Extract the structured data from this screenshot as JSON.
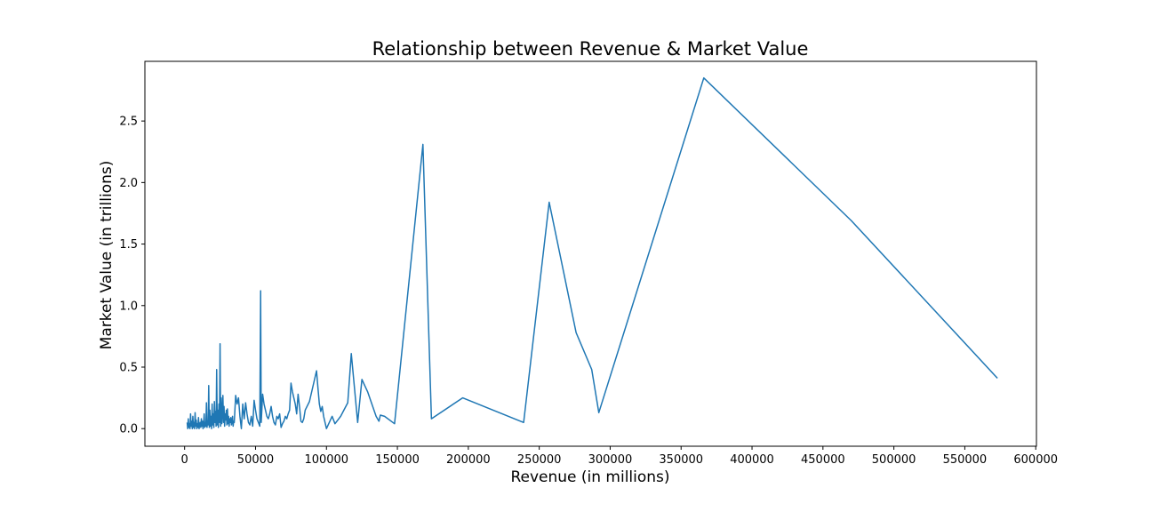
{
  "chart_data": {
    "type": "line",
    "title": "Relationship between Revenue & Market Value",
    "xlabel": "Revenue (in millions)",
    "ylabel": "Market Value (in trillions)",
    "xlim": [
      -28000,
      600500
    ],
    "ylim": [
      -0.143,
      2.985
    ],
    "x_ticks": [
      0,
      50000,
      100000,
      150000,
      200000,
      250000,
      300000,
      350000,
      400000,
      450000,
      500000,
      550000,
      600000
    ],
    "y_ticks": [
      0.0,
      0.5,
      1.0,
      1.5,
      2.0,
      2.5
    ],
    "x_tick_labels": [
      "0",
      "50000",
      "100000",
      "150000",
      "200000",
      "250000",
      "300000",
      "350000",
      "400000",
      "450000",
      "500000",
      "550000",
      "600000"
    ],
    "y_tick_labels": [
      "0.0",
      "0.5",
      "1.0",
      "1.5",
      "2.0",
      "2.5"
    ],
    "grid": false,
    "series": [
      {
        "color": "#1f77b4",
        "x": [
          1800,
          2200,
          2600,
          3000,
          3400,
          3800,
          4200,
          4600,
          5000,
          5400,
          5800,
          6200,
          6600,
          7000,
          7400,
          7800,
          8200,
          8600,
          9000,
          9400,
          9800,
          10200,
          10600,
          11000,
          11400,
          11800,
          12200,
          12600,
          13000,
          13400,
          13800,
          14200,
          14600,
          15000,
          15400,
          15800,
          16200,
          16600,
          17000,
          17400,
          17800,
          18200,
          18600,
          19000,
          19400,
          19800,
          20200,
          20600,
          21000,
          21400,
          21800,
          22200,
          22600,
          23000,
          23400,
          23800,
          24200,
          24600,
          25000,
          25400,
          25800,
          26200,
          26600,
          27000,
          27400,
          27800,
          28200,
          28600,
          29000,
          29400,
          29800,
          30200,
          30600,
          31000,
          31400,
          31800,
          32200,
          32600,
          33000,
          33400,
          33800,
          34200,
          34600,
          35000,
          36000,
          37000,
          38000,
          39000,
          40000,
          41000,
          42000,
          43000,
          44000,
          45000,
          46000,
          47000,
          48000,
          49000,
          50000,
          51000,
          52000,
          53000,
          53600,
          54000,
          55000,
          56000,
          57000,
          58000,
          59000,
          60000,
          61000,
          62000,
          63000,
          64000,
          65000,
          66000,
          67000,
          68000,
          69000,
          70000,
          71000,
          72000,
          73000,
          74000,
          75000,
          76000,
          77000,
          78000,
          79000,
          80000,
          81000,
          82000,
          83000,
          84000,
          85000,
          88000,
          93000,
          94000,
          95000,
          96000,
          97000,
          98000,
          100000,
          104000,
          106000,
          110000,
          115000,
          117500,
          122000,
          125000,
          127000,
          129000,
          132000,
          135000,
          137000,
          138000,
          141000,
          148000,
          168000,
          174000,
          196000,
          239000,
          257000,
          276000,
          287000,
          292000,
          366000,
          470000,
          573000
        ],
        "y": [
          0.05,
          0.0,
          0.08,
          0.01,
          0.04,
          0.0,
          0.12,
          0.02,
          0.06,
          0.0,
          0.1,
          0.01,
          0.05,
          0.0,
          0.13,
          0.02,
          0.07,
          0.0,
          0.04,
          0.01,
          0.09,
          0.0,
          0.03,
          0.05,
          0.01,
          0.08,
          0.02,
          0.06,
          0.0,
          0.04,
          0.12,
          0.01,
          0.05,
          0.02,
          0.21,
          0.01,
          0.06,
          0.03,
          0.35,
          0.01,
          0.15,
          0.02,
          0.1,
          0.0,
          0.2,
          0.03,
          0.12,
          0.01,
          0.22,
          0.05,
          0.14,
          0.02,
          0.48,
          0.03,
          0.15,
          0.01,
          0.2,
          0.05,
          0.69,
          0.02,
          0.25,
          0.04,
          0.12,
          0.27,
          0.05,
          0.18,
          0.02,
          0.12,
          0.07,
          0.15,
          0.03,
          0.16,
          0.04,
          0.1,
          0.02,
          0.08,
          0.05,
          0.09,
          0.03,
          0.06,
          0.1,
          0.02,
          0.06,
          0.05,
          0.27,
          0.2,
          0.25,
          0.1,
          0.0,
          0.2,
          0.08,
          0.21,
          0.12,
          0.05,
          0.03,
          0.1,
          0.02,
          0.23,
          0.15,
          0.08,
          0.05,
          0.02,
          1.12,
          0.05,
          0.28,
          0.2,
          0.15,
          0.1,
          0.08,
          0.12,
          0.18,
          0.1,
          0.05,
          0.03,
          0.1,
          0.08,
          0.12,
          0.01,
          0.04,
          0.06,
          0.1,
          0.08,
          0.12,
          0.15,
          0.37,
          0.3,
          0.25,
          0.2,
          0.12,
          0.28,
          0.18,
          0.06,
          0.05,
          0.08,
          0.15,
          0.22,
          0.47,
          0.33,
          0.2,
          0.14,
          0.18,
          0.1,
          0.0,
          0.1,
          0.04,
          0.1,
          0.21,
          0.61,
          0.05,
          0.4,
          0.35,
          0.3,
          0.2,
          0.1,
          0.06,
          0.11,
          0.1,
          0.04,
          2.31,
          0.08,
          0.25,
          0.05,
          1.84,
          0.78,
          0.48,
          0.13,
          2.85,
          1.69,
          0.41
        ]
      }
    ]
  }
}
